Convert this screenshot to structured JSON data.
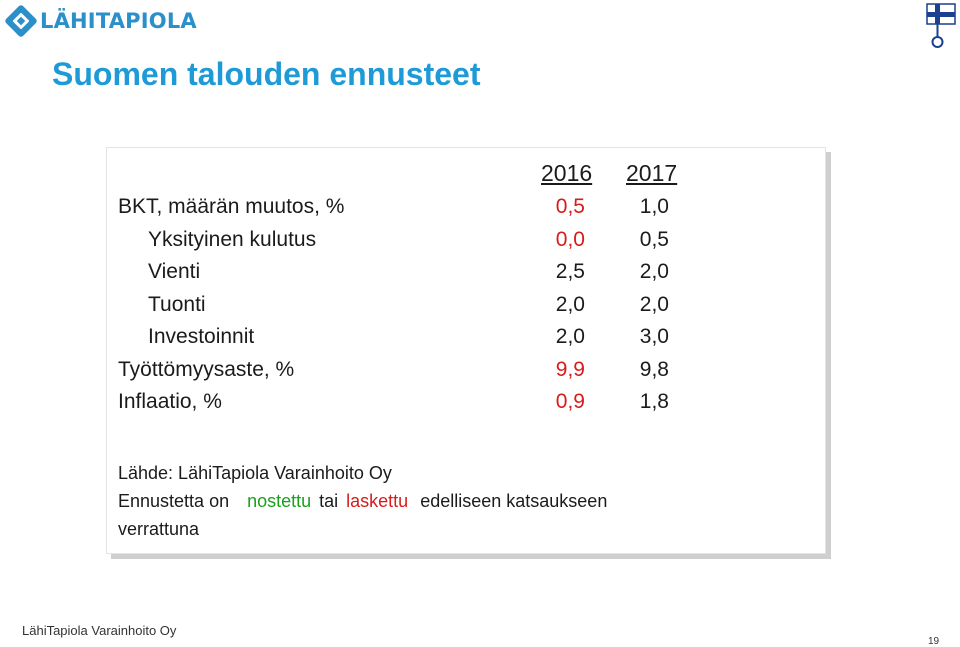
{
  "logo": {
    "text": "LÄHITAPIOLA",
    "color": "#2b8fc9"
  },
  "title": "Suomen talouden ennusteet",
  "table": {
    "years": [
      "2016",
      "2017"
    ],
    "rows": [
      {
        "label": "BKT, määrän muutos, %",
        "v2016": "0,5",
        "v2017": "1,0",
        "indent": false,
        "color2016": "#d81b1b"
      },
      {
        "label": "Yksityinen kulutus",
        "v2016": "0,0",
        "v2017": "0,5",
        "indent": true,
        "color2016": "#d81b1b"
      },
      {
        "label": "Vienti",
        "v2016": "2,5",
        "v2017": "2,0",
        "indent": true,
        "color2016": "#1b1b1b"
      },
      {
        "label": "Tuonti",
        "v2016": "2,0",
        "v2017": "2,0",
        "indent": true,
        "color2016": "#1b1b1b"
      },
      {
        "label": "Investoinnit",
        "v2016": "2,0",
        "v2017": "3,0",
        "indent": true,
        "color2016": "#1b1b1b"
      },
      {
        "label": "Työttömyysaste, %",
        "v2016": "9,9",
        "v2017": "9,8",
        "indent": false,
        "color2016": "#d81b1b"
      },
      {
        "label": "Inflaatio, %",
        "v2016": "0,9",
        "v2017": "1,8",
        "indent": false,
        "color2016": "#d81b1b"
      }
    ]
  },
  "notes": {
    "source": "Lähde: LähiTapiola Varainhoito Oy",
    "line2_part1": "Ennustetta on",
    "line2_raised": "nostettu",
    "line2_part2": "tai",
    "line2_lowered": "laskettu",
    "line2_part3": "edelliseen katsaukseen",
    "line3": "verrattuna"
  },
  "footer": "LähiTapiola Varainhoito Oy",
  "page_number": "19",
  "colors": {
    "title": "#1e9bd7",
    "raised": "#1aa01a",
    "lowered": "#d81b1b"
  }
}
